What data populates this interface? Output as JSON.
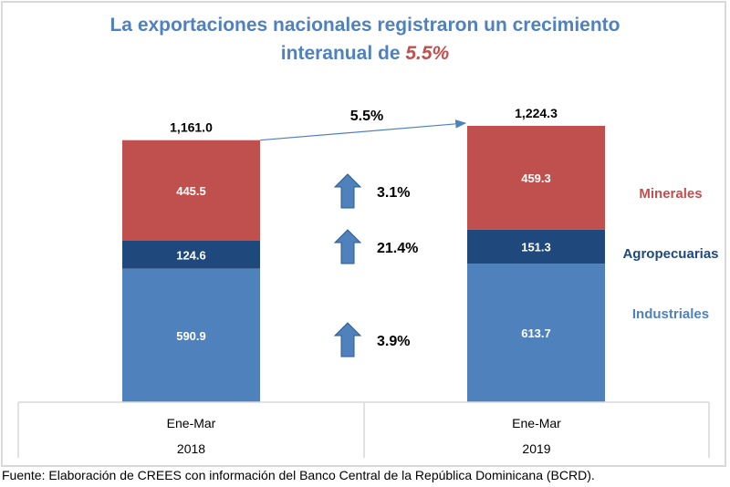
{
  "chart_data": {
    "type": "bar",
    "stacked": true,
    "title": "La exportaciones nacionales registraron un crecimiento interanual de 5.5%",
    "title_parts": {
      "line1": "La exportaciones nacionales registraron un crecimiento",
      "line2_prefix": "interanual de ",
      "line2_highlight": "5.5%"
    },
    "categories": [
      {
        "period": "Ene-Mar",
        "year": "2018"
      },
      {
        "period": "Ene-Mar",
        "year": "2019"
      }
    ],
    "series": [
      {
        "name": "Industriales",
        "color": "#4f81bd",
        "values": [
          590.9,
          613.7
        ],
        "labels": [
          "590.9",
          "613.7"
        ],
        "growth": "3.9%"
      },
      {
        "name": "Agropecuarias",
        "color": "#1f497d",
        "values": [
          124.6,
          151.3
        ],
        "labels": [
          "124.6",
          "151.3"
        ],
        "growth": "21.4%"
      },
      {
        "name": "Minerales",
        "color": "#c0504d",
        "values": [
          445.5,
          459.3
        ],
        "labels": [
          "445.5",
          "459.3"
        ],
        "growth": "3.1%"
      }
    ],
    "totals": [
      1161.0,
      1224.3
    ],
    "total_labels": [
      "1,161.0",
      "1,224.3"
    ],
    "total_growth": "5.5%",
    "ylim": [
      0,
      1224.3
    ],
    "legend": "right",
    "grid": false,
    "xlabel": "",
    "ylabel": ""
  },
  "colors": {
    "title": "#4f81bd",
    "highlight": "#c0504d",
    "arrow": "#4f81bd",
    "arrow_border": "#2e5c8a"
  },
  "source": "Fuente: Elaboración de CREES con información del Banco Central de la República Dominicana (BCRD)."
}
